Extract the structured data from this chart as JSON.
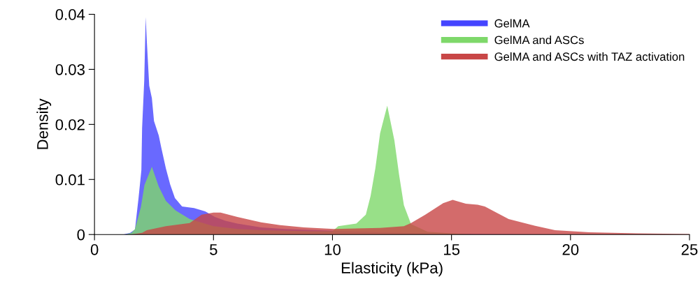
{
  "chart_data": {
    "type": "area",
    "xlabel": "Elasticity (kPa)",
    "ylabel": "Density",
    "xlim": [
      0,
      25
    ],
    "xticks": [
      0,
      5,
      10,
      15,
      20,
      25
    ],
    "ylim": [
      0,
      0.04
    ],
    "yticks": [
      0,
      0.01,
      0.02,
      0.03,
      0.04
    ],
    "grid": false,
    "legend": "top right",
    "series": [
      {
        "name": "GelMA",
        "color": "#4444ff",
        "x": [
          1.2,
          1.5,
          1.7,
          1.85,
          1.97,
          2.0,
          2.09,
          2.15,
          2.2,
          2.3,
          2.41,
          2.5,
          2.7,
          2.8,
          3.0,
          3.18,
          3.38,
          3.68,
          4.18,
          4.65,
          5.06,
          5.5,
          6,
          7,
          8,
          10,
          12,
          14,
          16,
          20,
          25
        ],
        "values": [
          0,
          0.0003,
          0.0009,
          0.0066,
          0.0117,
          0.0193,
          0.028,
          0.0395,
          0.035,
          0.027,
          0.0248,
          0.0206,
          0.018,
          0.0159,
          0.012,
          0.0091,
          0.0066,
          0.0051,
          0.0048,
          0.0042,
          0.0032,
          0.0025,
          0.002,
          0.0013,
          0.001,
          0.0007,
          0.0004,
          0.0002,
          0.0001,
          0,
          0
        ]
      },
      {
        "name": "GelMA and ASCs",
        "color": "#7ed86a",
        "x": [
          1.3,
          1.56,
          1.7,
          1.95,
          2.1,
          2.41,
          2.7,
          3.0,
          3.4,
          4.0,
          5,
          6,
          7,
          8,
          9,
          10,
          10.24,
          11.0,
          11.4,
          11.6,
          11.8,
          12.0,
          12.3,
          12.6,
          12.8,
          13.0,
          13.3,
          14,
          15,
          16,
          25
        ],
        "values": [
          0,
          0.0003,
          0.001,
          0.005,
          0.009,
          0.0123,
          0.0087,
          0.0061,
          0.0044,
          0.0028,
          0.0015,
          0.001,
          0.0008,
          0.0007,
          0.0006,
          0.0006,
          0.0015,
          0.002,
          0.0036,
          0.007,
          0.012,
          0.0184,
          0.0234,
          0.0171,
          0.0108,
          0.0053,
          0.0019,
          0.0005,
          0.0002,
          0,
          0
        ]
      },
      {
        "name": "GelMA and ASCs with TAZ activation",
        "color": "#c84646",
        "x": [
          1.5,
          2.0,
          2.2,
          3.0,
          4.0,
          4.5,
          5.0,
          5.3,
          6,
          7,
          7.8,
          8.8,
          10.06,
          12,
          13,
          13.3,
          13.9,
          14.65,
          15.05,
          15.6,
          16.1,
          16.4,
          17.4,
          18.4,
          19.35,
          20.8,
          22.8,
          25
        ],
        "values": [
          0,
          0.0003,
          0.0008,
          0.0015,
          0.0021,
          0.0036,
          0.004,
          0.004,
          0.0032,
          0.0022,
          0.0017,
          0.0013,
          0.001,
          0.0012,
          0.0015,
          0.0021,
          0.0036,
          0.0057,
          0.0063,
          0.0056,
          0.0054,
          0.0051,
          0.0028,
          0.0017,
          0.0008,
          0.0004,
          0.0002,
          0.0001
        ]
      }
    ]
  }
}
